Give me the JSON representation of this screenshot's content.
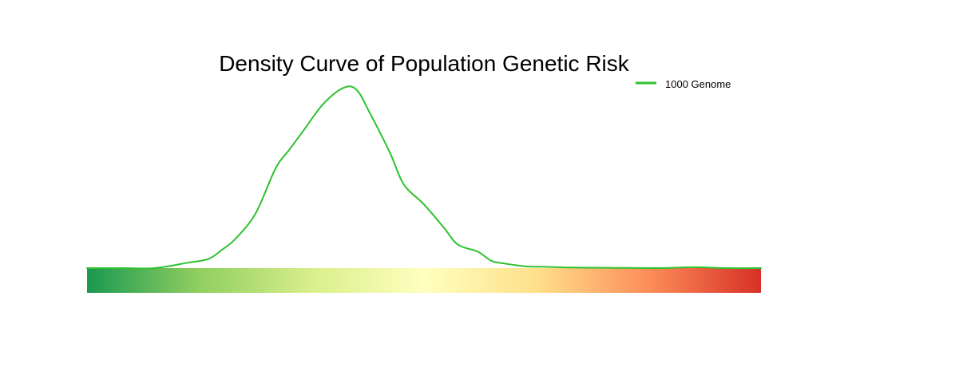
{
  "chart_data": {
    "type": "line",
    "title": "Density Curve of Population Genetic Risk",
    "xlabel": "",
    "ylabel": "",
    "xlim": [
      0,
      1
    ],
    "ylim": [
      0,
      1
    ],
    "grid": false,
    "legend_position": "top-right",
    "series": [
      {
        "name": "1000 Genome",
        "color": "#2ec22e",
        "x": [
          0.0,
          0.05,
          0.1,
          0.15,
          0.18,
          0.2,
          0.22,
          0.25,
          0.28,
          0.3,
          0.32,
          0.35,
          0.38,
          0.4,
          0.42,
          0.45,
          0.47,
          0.5,
          0.53,
          0.55,
          0.58,
          0.6,
          0.62,
          0.65,
          0.68,
          0.7,
          0.72,
          0.75,
          0.8,
          0.85,
          0.9,
          0.95,
          1.0
        ],
        "y": [
          0.0,
          0.0,
          0.0,
          0.03,
          0.05,
          0.1,
          0.16,
          0.3,
          0.55,
          0.65,
          0.75,
          0.9,
          0.99,
          0.98,
          0.85,
          0.63,
          0.46,
          0.35,
          0.22,
          0.13,
          0.09,
          0.04,
          0.025,
          0.01,
          0.007,
          0.005,
          0.003,
          0.002,
          0.001,
          0.0,
          0.005,
          0.0,
          0.0
        ]
      }
    ],
    "color_scale": [
      "#1a9850",
      "#91cf60",
      "#d9ef8b",
      "#ffffbf",
      "#fee08b",
      "#fc8d59",
      "#d73027"
    ]
  }
}
